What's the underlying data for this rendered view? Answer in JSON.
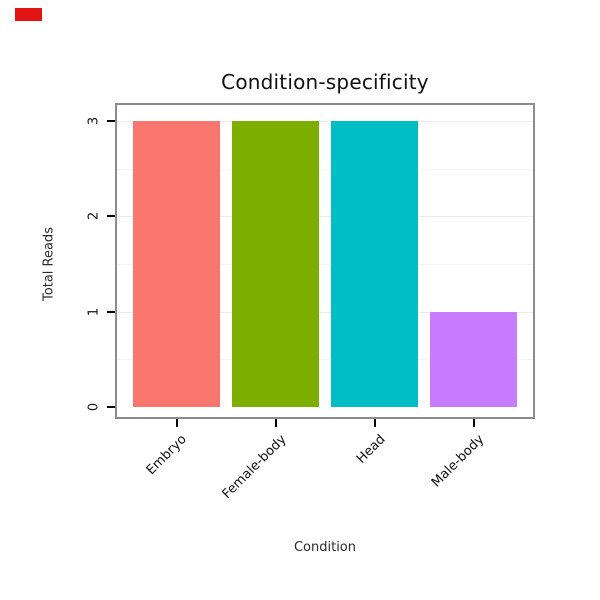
{
  "indicator": {
    "color": "#e31414"
  },
  "chart_data": {
    "type": "bar",
    "title": "Condition-specificity",
    "categories": [
      "Embryo",
      "Female-body",
      "Head",
      "Male-body"
    ],
    "values": [
      3,
      3,
      3,
      1
    ],
    "bar_colors": [
      "#F8766D",
      "#7CAE00",
      "#00BFC4",
      "#C77CFF"
    ],
    "xlabel": "Condition",
    "ylabel": "Total Reads",
    "ylim": [
      0,
      3
    ],
    "yticks": [
      0,
      1,
      2,
      3
    ],
    "grid": "horizontal major and minor gridlines, very light gray, white panel",
    "panel_border_color": "#8c8c8c",
    "legend": "none",
    "x_tick_label_rotation_deg": 45,
    "y_tick_label_rotation_deg": 90
  }
}
